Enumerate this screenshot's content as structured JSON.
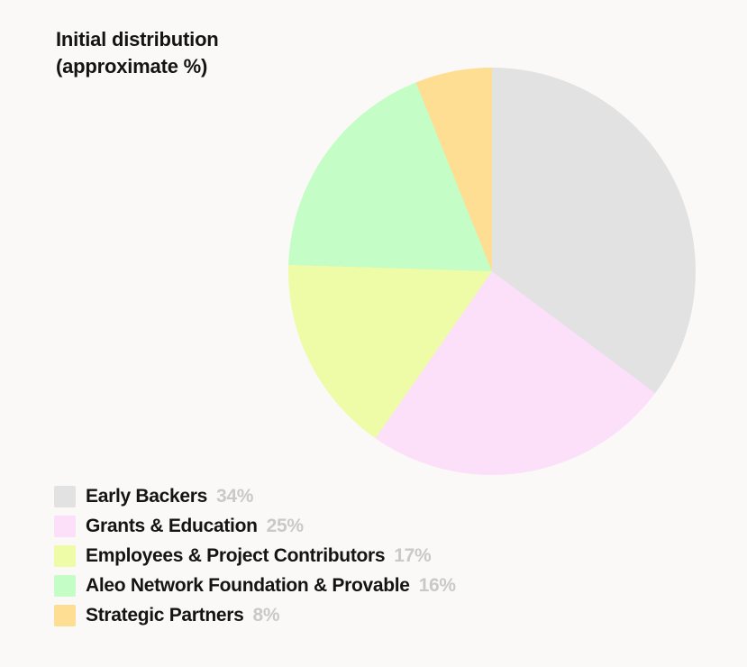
{
  "theme": {
    "background": "#faf9f7",
    "text_color": "#141414",
    "value_text_color": "#c9c9c9"
  },
  "chart_data": {
    "type": "pie",
    "title": "Initial distribution (approximate %)",
    "title_lines": [
      "Initial distribution",
      "(approximate %)"
    ],
    "start_angle_deg": 0,
    "direction": "clockwise",
    "legend_position": "bottom-left",
    "slices": [
      {
        "label": "Early Backers",
        "value": 34,
        "value_label": "34%",
        "color": "#e2e2e2",
        "drawn_percent": 35.2
      },
      {
        "label": "Grants & Education",
        "value": 25,
        "value_label": "25%",
        "color": "#fcdff8",
        "drawn_percent": 24.5
      },
      {
        "label": "Employees & Project Contributors",
        "value": 17,
        "value_label": "17%",
        "color": "#eefca7",
        "drawn_percent": 15.8
      },
      {
        "label": "Aleo Network Foundation & Provable",
        "value": 16,
        "value_label": "16%",
        "color": "#c4fdc5",
        "drawn_percent": 18.4
      },
      {
        "label": "Strategic Partners",
        "value": 8,
        "value_label": "8%",
        "color": "#fdde92",
        "drawn_percent": 6.1
      }
    ]
  }
}
